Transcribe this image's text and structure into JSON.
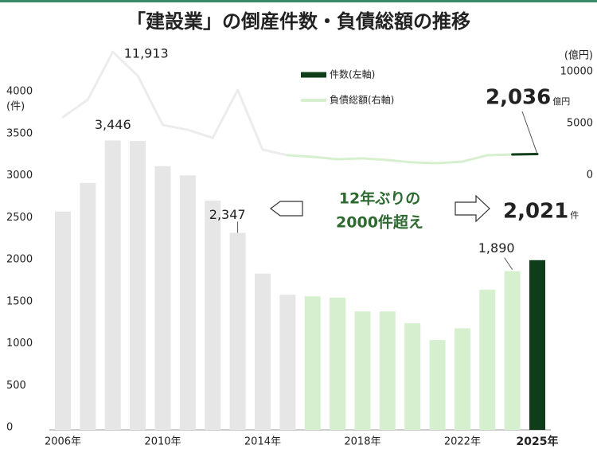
{
  "chart_data": {
    "type": "bar_line",
    "title": "「建設業」の倒産件数・負債総額の推移",
    "y_label": "(件)",
    "y2_label": "(億円)",
    "categories": [
      "2006年",
      null,
      null,
      null,
      "2010年",
      null,
      null,
      null,
      "2014年",
      null,
      null,
      null,
      "2018年",
      null,
      null,
      null,
      "2022年",
      null,
      null,
      "2025年"
    ],
    "series": [
      {
        "name": "件数(左軸)",
        "type": "bar",
        "color": "#0f3d1a",
        "colors": [
          "#e6e6e6",
          "#e6e6e6",
          "#e6e6e6",
          "#e6e6e6",
          "#e6e6e6",
          "#e6e6e6",
          "#e6e6e6",
          "#e6e6e6",
          "#e6e6e6",
          "#e6e6e6",
          "#d6f0cf",
          "#d6f0cf",
          "#d6f0cf",
          "#d6f0cf",
          "#d6f0cf",
          "#d6f0cf",
          "#d6f0cf",
          "#d6f0cf",
          "#d6f0cf",
          "#0f3d1a"
        ],
        "values": [
          2600,
          2940,
          3446,
          3440,
          3140,
          3030,
          2730,
          2347,
          1860,
          1610,
          1590,
          1575,
          1410,
          1410,
          1270,
          1070,
          1210,
          1670,
          1890,
          2021
        ],
        "value_labels": [
          null,
          null,
          "3,446",
          null,
          null,
          null,
          null,
          "2,347",
          null,
          null,
          null,
          null,
          null,
          null,
          null,
          null,
          null,
          null,
          "1,890",
          "2,021"
        ],
        "unit_label": "件"
      },
      {
        "name": "負債総額(右軸)",
        "type": "line",
        "axis": "y2",
        "color": "#d6f0cf",
        "colors": [
          null,
          "#ececec",
          "#ececec",
          "#ececec",
          "#ececec",
          "#ececec",
          "#ececec",
          "#ececec",
          "#ececec",
          "#ececec",
          "#d6f0cf",
          "#d6f0cf",
          "#d6f0cf",
          "#d6f0cf",
          "#d6f0cf",
          "#d6f0cf",
          "#d6f0cf",
          "#d6f0cf",
          "#d6f0cf",
          "#0f3d1a"
        ],
        "values": [
          5600,
          7300,
          11913,
          9600,
          4850,
          4380,
          3600,
          8230,
          2460,
          1920,
          1770,
          1540,
          1620,
          1460,
          1230,
          1150,
          1310,
          1920,
          2000,
          2036
        ],
        "value_labels": [
          null,
          null,
          "11,913",
          null,
          null,
          null,
          null,
          null,
          null,
          null,
          null,
          null,
          null,
          null,
          null,
          null,
          null,
          null,
          null,
          "2,036"
        ],
        "unit_label": "億円"
      }
    ],
    "annotation": [
      "12年ぶりの",
      "2000件超え"
    ],
    "ylim": [
      0,
      4000
    ],
    "yticks": [
      0,
      500,
      1000,
      1500,
      2000,
      2500,
      3000,
      3500,
      4000
    ],
    "y2lim": [
      0,
      10000
    ],
    "y2ticks": [
      0,
      5000,
      10000
    ]
  }
}
